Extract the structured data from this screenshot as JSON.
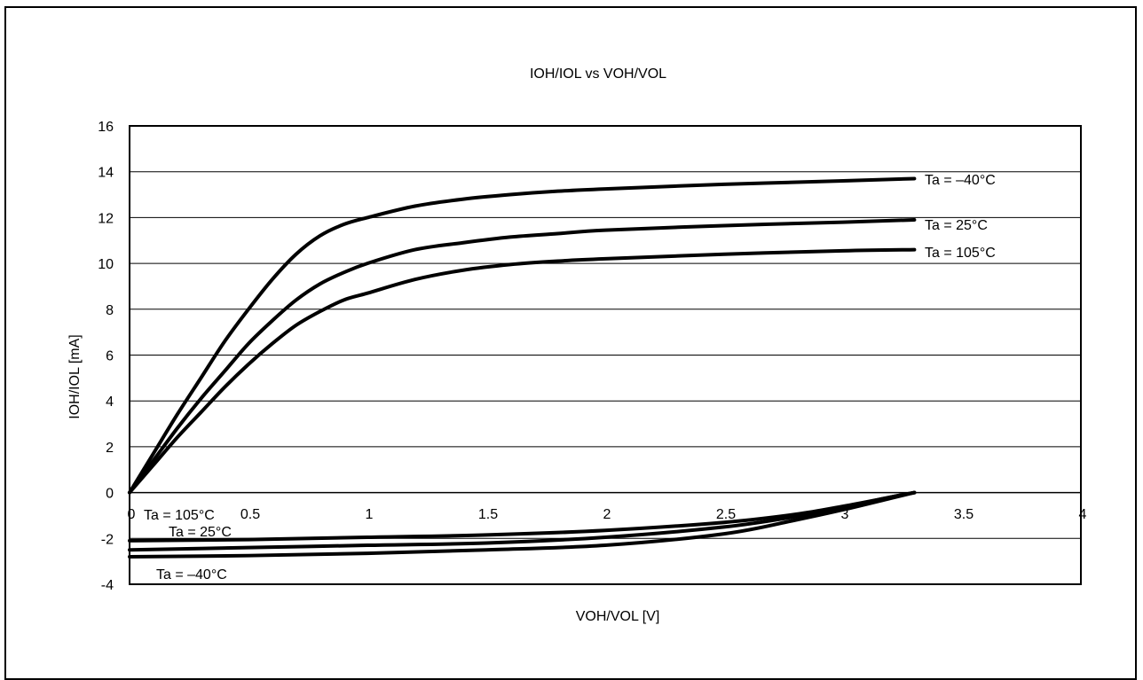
{
  "chart_data": {
    "type": "line",
    "title": "IOH/IOL vs VOH/VOL",
    "xlabel": "VOH/VOL [V]",
    "ylabel": "IOH/IOL [mA]",
    "xlim": [
      0,
      4
    ],
    "ylim": [
      -4,
      16
    ],
    "xticks": [
      "0",
      "0.5",
      "1",
      "1.5",
      "2",
      "2.5",
      "3",
      "3.5",
      "4"
    ],
    "yticks": [
      "16",
      "14",
      "12",
      "10",
      "8",
      "6",
      "4",
      "2",
      "0",
      "-2",
      "-4"
    ],
    "grid": "horizontal",
    "series": [
      {
        "name": "Ta = –40°C",
        "group": "IOH",
        "x": [
          0,
          0.1,
          0.2,
          0.3,
          0.4,
          0.5,
          0.6,
          0.7,
          0.8,
          0.9,
          1.0,
          1.2,
          1.4,
          1.6,
          1.8,
          2.0,
          2.5,
          3.0,
          3.3
        ],
        "y": [
          0,
          1.7,
          3.4,
          5.0,
          6.6,
          8.0,
          9.3,
          10.4,
          11.2,
          11.7,
          12.0,
          12.5,
          12.8,
          13.0,
          13.15,
          13.25,
          13.45,
          13.6,
          13.7
        ]
      },
      {
        "name": "Ta = 25°C",
        "group": "IOH",
        "x": [
          0,
          0.1,
          0.2,
          0.3,
          0.4,
          0.5,
          0.6,
          0.7,
          0.8,
          0.9,
          1.0,
          1.2,
          1.4,
          1.6,
          1.8,
          2.0,
          2.5,
          3.0,
          3.3
        ],
        "y": [
          0,
          1.4,
          2.8,
          4.1,
          5.3,
          6.5,
          7.5,
          8.4,
          9.1,
          9.6,
          10.0,
          10.6,
          10.9,
          11.15,
          11.3,
          11.45,
          11.65,
          11.8,
          11.9
        ]
      },
      {
        "name": "Ta = 105°C",
        "group": "IOH",
        "x": [
          0,
          0.1,
          0.2,
          0.3,
          0.4,
          0.5,
          0.6,
          0.7,
          0.8,
          0.9,
          1.0,
          1.2,
          1.4,
          1.6,
          1.8,
          2.0,
          2.5,
          3.0,
          3.3
        ],
        "y": [
          0,
          1.2,
          2.4,
          3.5,
          4.6,
          5.6,
          6.5,
          7.3,
          7.9,
          8.4,
          8.7,
          9.3,
          9.7,
          9.95,
          10.1,
          10.2,
          10.4,
          10.55,
          10.6
        ]
      },
      {
        "name": "Ta = 105°C",
        "group": "IOL",
        "x": [
          0,
          0.5,
          1.0,
          1.5,
          2.0,
          2.5,
          2.8,
          3.0,
          3.2,
          3.3
        ],
        "y": [
          -2.1,
          -2.05,
          -1.95,
          -1.85,
          -1.65,
          -1.3,
          -0.95,
          -0.6,
          -0.2,
          0
        ]
      },
      {
        "name": "Ta = 25°C",
        "group": "IOL",
        "x": [
          0,
          0.5,
          1.0,
          1.5,
          2.0,
          2.5,
          2.8,
          3.0,
          3.2,
          3.3
        ],
        "y": [
          -2.5,
          -2.4,
          -2.3,
          -2.2,
          -1.95,
          -1.5,
          -1.05,
          -0.65,
          -0.2,
          0
        ]
      },
      {
        "name": "Ta = –40°C",
        "group": "IOL",
        "x": [
          0,
          0.5,
          1.0,
          1.5,
          2.0,
          2.5,
          2.8,
          3.0,
          3.2,
          3.3
        ],
        "y": [
          -2.8,
          -2.75,
          -2.65,
          -2.5,
          -2.3,
          -1.8,
          -1.2,
          -0.75,
          -0.25,
          0
        ]
      }
    ],
    "annotations": [
      "Ta = –40°C",
      "Ta = 25°C",
      "Ta = 105°C",
      "Ta = 105°C",
      "Ta = 25°C",
      "Ta = –40°C"
    ],
    "line_color": "#000000"
  }
}
